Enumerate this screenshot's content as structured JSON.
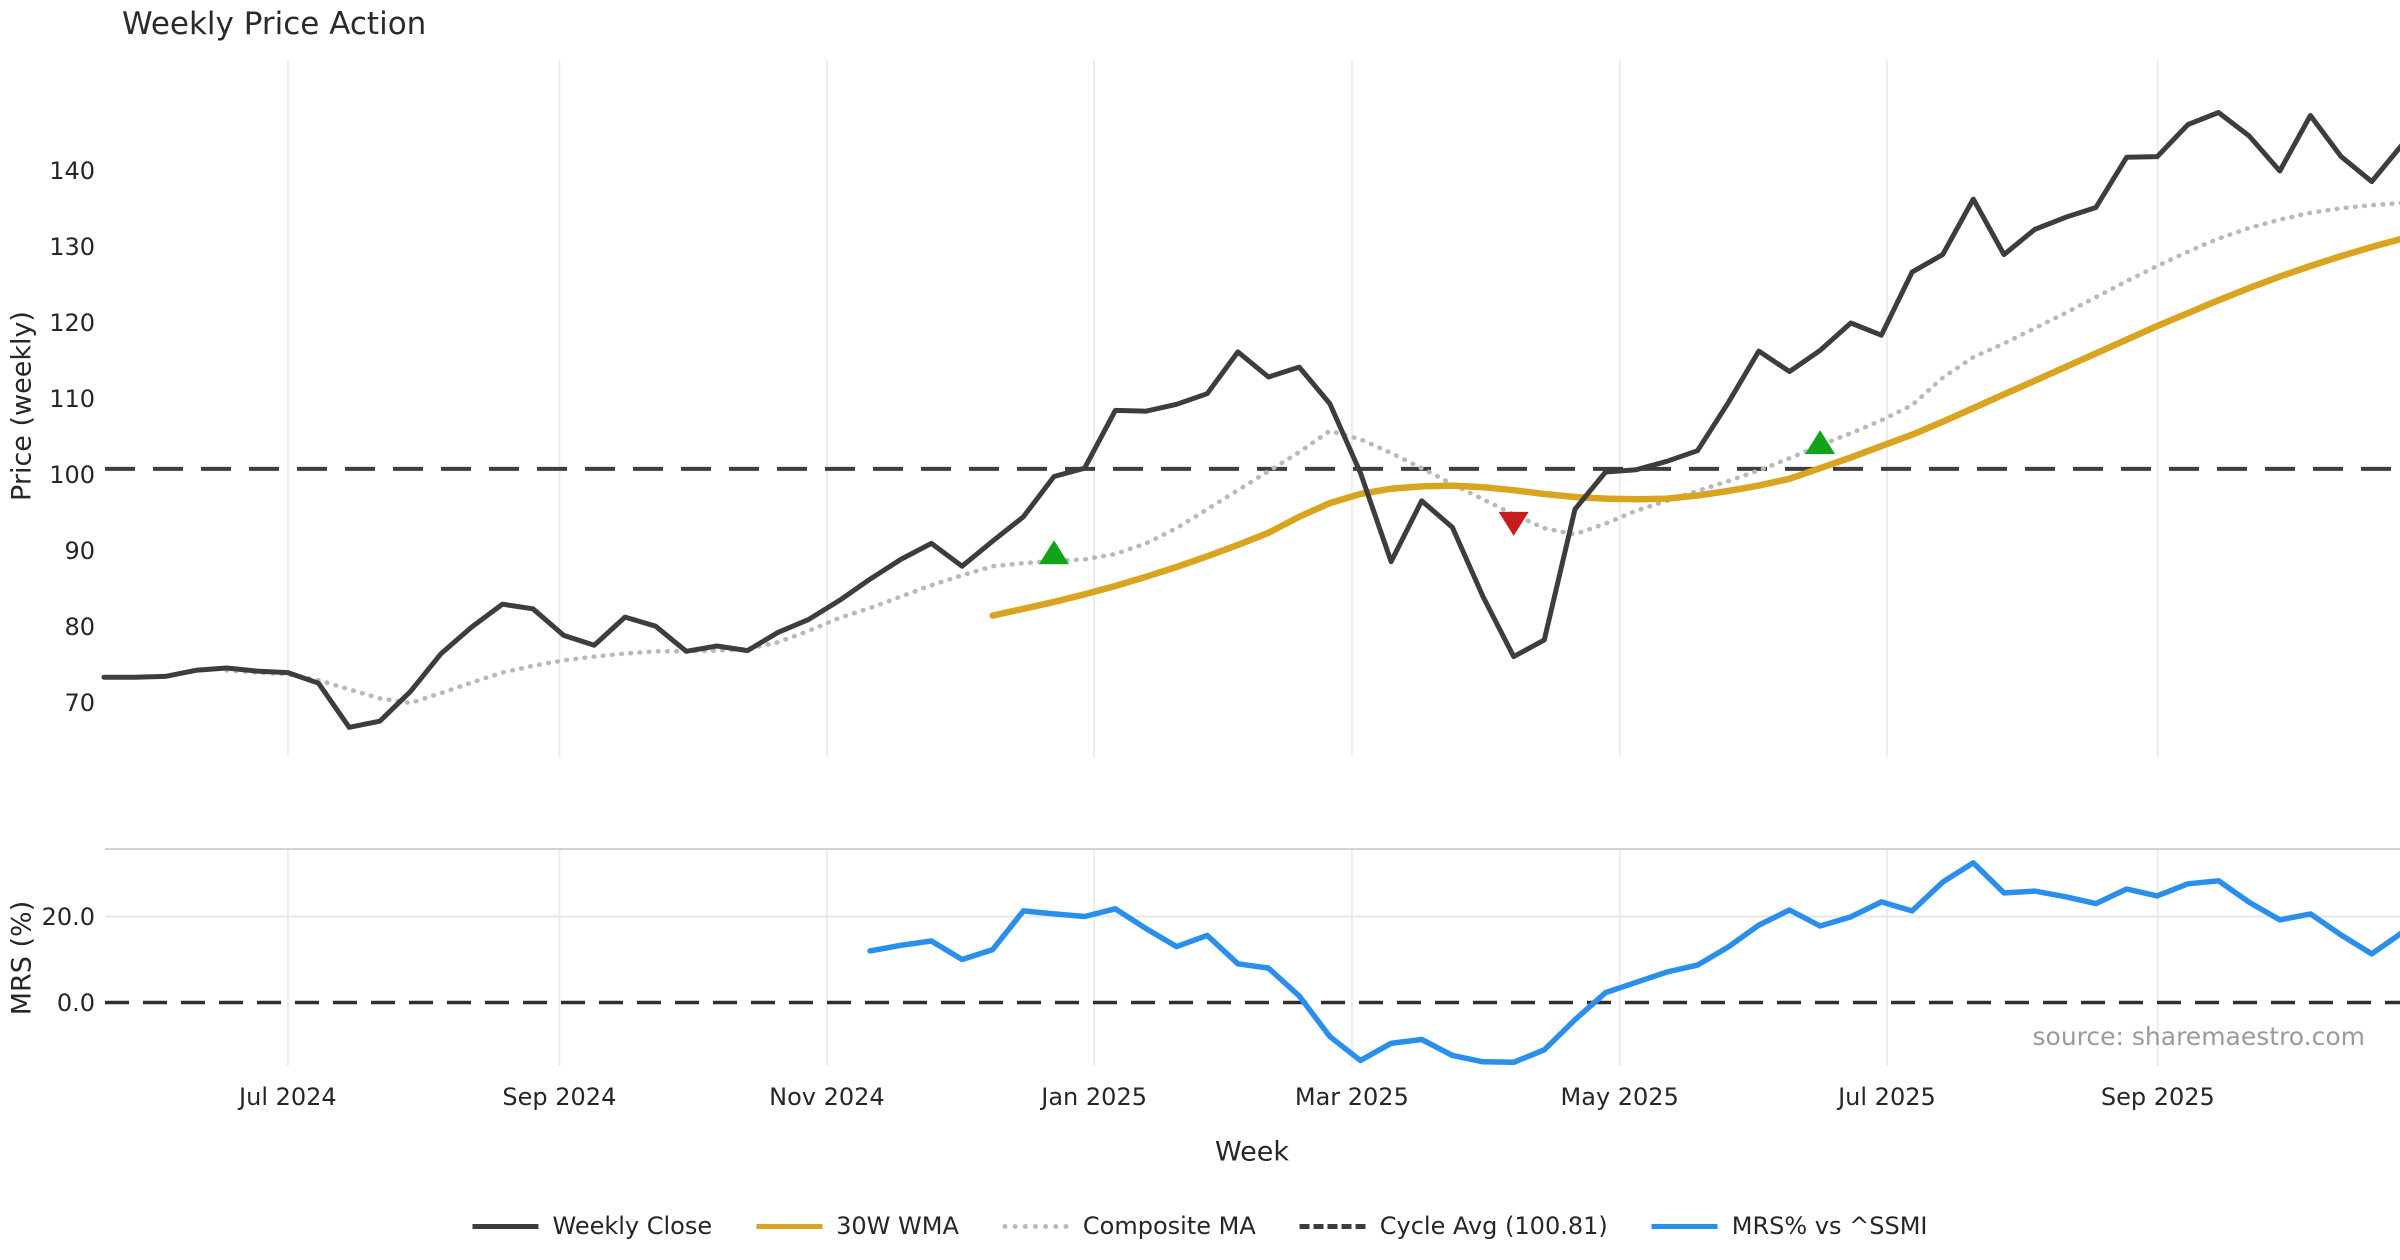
{
  "title": "Weekly Price Action",
  "x_axis_label": "Week",
  "source": "source: sharemaestro.com",
  "colors": {
    "weekly_close": "#3d3d3d",
    "wma": "#d9a521",
    "composite": "#b9b9b9",
    "cycle_avg": "#3d3d3d",
    "mrs": "#2a8fec",
    "buy_marker": "#12a31a",
    "sell_marker": "#c91d1d",
    "gridline": "#e9edf3",
    "panel_separator": "#d0d3d8",
    "mrs_gridline": "#e7e7e7",
    "zero_line": "#2e2e2e",
    "text": "#262626",
    "source_text": "#9a9a9a"
  },
  "legend": [
    {
      "label": "Weekly Close",
      "color": "#3d3d3d",
      "style": "solid"
    },
    {
      "label": "30W WMA",
      "color": "#d9a521",
      "style": "solid"
    },
    {
      "label": "Composite MA",
      "color": "#b9b9b9",
      "style": "dotted"
    },
    {
      "label": "Cycle Avg (100.81)",
      "color": "#3d3d3d",
      "style": "dashed"
    },
    {
      "label": "MRS% vs ^SSMI",
      "color": "#2a8fec",
      "style": "solid"
    }
  ],
  "chart_data": {
    "type": "line",
    "title": "Weekly Price Action",
    "xlabel": "Week",
    "x_ticks": [
      {
        "label": "Jul 2024",
        "week": 6.0
      },
      {
        "label": "Sep 2024",
        "week": 14.86
      },
      {
        "label": "Nov 2024",
        "week": 23.59
      },
      {
        "label": "Jan 2025",
        "week": 32.31
      },
      {
        "label": "Mar 2025",
        "week": 40.72
      },
      {
        "label": "May 2025",
        "week": 49.46
      },
      {
        "label": "Jul 2025",
        "week": 58.18
      },
      {
        "label": "Sep 2025",
        "week": 67.02
      }
    ],
    "price_panel": {
      "ylabel": "Price (weekly)",
      "yticks": [
        70,
        80,
        90,
        100,
        110,
        120,
        130,
        140
      ],
      "ylim": [
        62.9,
        155.3
      ],
      "cycle_avg": 100.81,
      "series": [
        {
          "name": "Weekly Close",
          "key": "weekly_close",
          "style": "solid",
          "start_week": 0,
          "values": [
            73.4,
            73.4,
            73.5,
            74.3,
            74.6,
            74.2,
            74.0,
            72.6,
            66.8,
            67.6,
            71.5,
            76.5,
            80.0,
            83.0,
            82.4,
            78.9,
            77.6,
            81.3,
            80.1,
            76.8,
            77.5,
            76.9,
            79.3,
            81.0,
            83.5,
            86.3,
            88.9,
            91.0,
            88.0,
            91.3,
            94.5,
            99.8,
            100.9,
            108.5,
            108.4,
            109.3,
            110.7,
            116.2,
            112.9,
            114.2,
            109.4,
            100.3,
            88.6,
            96.6,
            93.1,
            84.0,
            76.1,
            78.3,
            95.5,
            100.4,
            100.7,
            101.8,
            103.2,
            109.5,
            116.3,
            113.6,
            116.4,
            120.0,
            118.4,
            126.7,
            129.0,
            136.3,
            129.0,
            132.3,
            133.9,
            135.2,
            141.8,
            141.9,
            146.1,
            147.7,
            144.6,
            140.0,
            147.3,
            141.9,
            138.6,
            143.5
          ]
        },
        {
          "name": "30W WMA",
          "key": "wma",
          "style": "solid",
          "start_week": 29,
          "values": [
            81.5,
            82.4,
            83.3,
            84.3,
            85.4,
            86.6,
            87.9,
            89.3,
            90.8,
            92.4,
            94.5,
            96.3,
            97.5,
            98.2,
            98.5,
            98.6,
            98.4,
            98.0,
            97.5,
            97.1,
            96.9,
            96.8,
            96.9,
            97.3,
            97.9,
            98.6,
            99.5,
            100.9,
            102.3,
            103.8,
            105.3,
            107.0,
            108.8,
            110.6,
            112.4,
            114.2,
            116.0,
            117.8,
            119.6,
            121.3,
            123.0,
            124.6,
            126.1,
            127.5,
            128.8,
            130.0,
            131.1
          ]
        },
        {
          "name": "Composite MA",
          "key": "composite",
          "style": "dotted",
          "start_week": 4,
          "values": [
            74.3,
            74.0,
            73.8,
            73.0,
            71.8,
            70.6,
            70.0,
            71.3,
            72.7,
            74.0,
            74.9,
            75.6,
            76.1,
            76.5,
            76.8,
            76.8,
            76.9,
            77.1,
            78.0,
            79.5,
            81.2,
            82.5,
            84.0,
            85.5,
            86.8,
            88.0,
            88.4,
            88.7,
            88.9,
            89.6,
            91.0,
            93.0,
            95.5,
            98.0,
            100.5,
            103.0,
            105.8,
            104.7,
            102.9,
            100.9,
            98.8,
            96.8,
            94.8,
            93.0,
            92.2,
            93.6,
            95.3,
            96.6,
            97.9,
            99.2,
            100.6,
            102.2,
            103.9,
            105.5,
            107.2,
            109.2,
            112.8,
            115.5,
            117.3,
            119.3,
            121.3,
            123.4,
            125.5,
            127.5,
            129.4,
            131.1,
            132.5,
            133.6,
            134.5,
            135.1,
            135.5,
            135.8
          ]
        }
      ],
      "markers": [
        {
          "shape": "triangle-up",
          "key": "buy_marker",
          "week": 31,
          "value": 89.7
        },
        {
          "shape": "triangle-down",
          "key": "sell_marker",
          "week": 46,
          "value": 93.7
        },
        {
          "shape": "triangle-up",
          "key": "buy_marker",
          "week": 56,
          "value": 104.2
        }
      ]
    },
    "mrs_panel": {
      "ylabel": "MRS (%)",
      "yticks": [
        {
          "label": "20.0",
          "value": 20
        },
        {
          "label": "0.0",
          "value": 0
        }
      ],
      "ylim": [
        -14.6,
        35.7
      ],
      "zero_line": 0,
      "series": [
        {
          "name": "MRS% vs ^SSMI",
          "key": "mrs",
          "style": "solid",
          "start_week": 25,
          "values": [
            12.0,
            13.3,
            14.3,
            10.0,
            12.3,
            21.3,
            20.6,
            20.0,
            21.8,
            17.2,
            13.0,
            15.6,
            9.0,
            8.0,
            1.5,
            -7.9,
            -13.5,
            -9.5,
            -8.6,
            -12.3,
            -13.8,
            -13.9,
            -11.0,
            -4.0,
            2.3,
            4.7,
            7.1,
            8.7,
            12.9,
            18.0,
            21.5,
            17.8,
            19.9,
            23.4,
            21.3,
            28.0,
            32.5,
            25.5,
            25.9,
            24.6,
            23.0,
            26.4,
            24.8,
            27.6,
            28.3,
            23.3,
            19.2,
            20.6,
            15.7,
            11.3,
            16.3
          ]
        }
      ]
    }
  }
}
